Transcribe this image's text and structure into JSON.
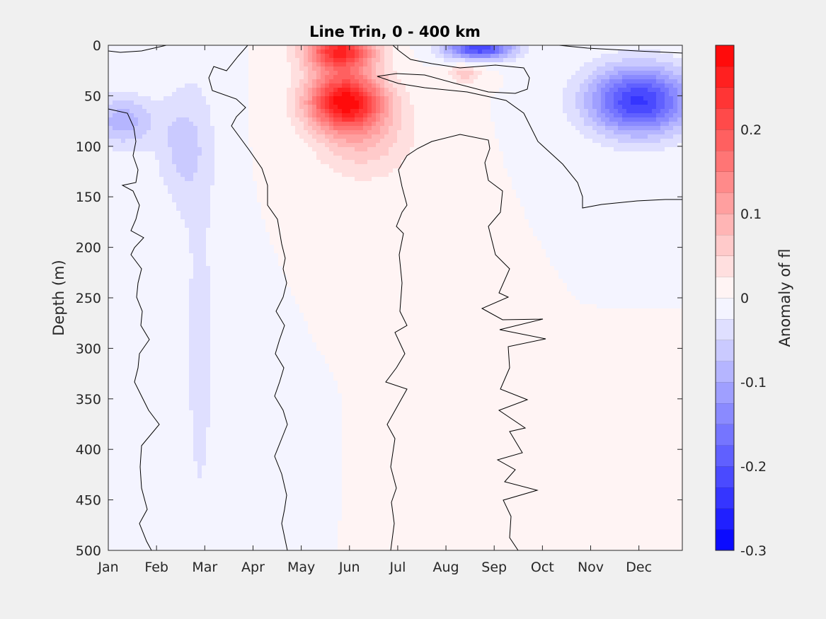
{
  "chart_data": {
    "type": "heatmap",
    "subtype": "filled-contour",
    "title": "Line Trin, 0 - 400 km",
    "xlabel": "",
    "ylabel": "Depth (m)",
    "x_tick_labels": [
      "Jan",
      "Feb",
      "Mar",
      "Apr",
      "May",
      "Jun",
      "Jul",
      "Aug",
      "Sep",
      "Oct",
      "Nov",
      "Dec"
    ],
    "x_tick_months": [
      1,
      2,
      3,
      4,
      5,
      6,
      7,
      8,
      9,
      10,
      11,
      12
    ],
    "xlim": [
      1,
      12.9
    ],
    "ylim": [
      0,
      500
    ],
    "y_reversed": true,
    "y_ticks": [
      0,
      50,
      100,
      150,
      200,
      250,
      300,
      350,
      400,
      450,
      500
    ],
    "grid": false,
    "colorbar": {
      "label": "Anomaly of fl",
      "limits": [
        -0.3,
        0.3
      ],
      "ticks": [
        -0.3,
        -0.2,
        -0.1,
        0,
        0.1,
        0.2
      ],
      "levels": 24,
      "colormap": "blue-white-red",
      "min_color": "#0000ff",
      "max_color": "#ff0000"
    },
    "anomaly_features": [
      {
        "sign": "positive",
        "month": 5.9,
        "depth": 55,
        "peak": 0.27
      },
      {
        "sign": "positive",
        "month": 5.8,
        "depth": 5,
        "peak": 0.25
      },
      {
        "sign": "positive",
        "month": 6.3,
        "depth": 90,
        "peak": 0.07
      },
      {
        "sign": "positive",
        "month": 8.4,
        "depth": 28,
        "peak": 0.06
      },
      {
        "sign": "negative",
        "month": 12.0,
        "depth": 55,
        "peak": -0.23
      },
      {
        "sign": "negative",
        "month": 8.7,
        "depth": 3,
        "peak": -0.22
      },
      {
        "sign": "negative",
        "month": 1.3,
        "depth": 75,
        "peak": -0.09
      },
      {
        "sign": "negative",
        "month": 2.5,
        "depth": 100,
        "peak": -0.05
      },
      {
        "sign": "negative",
        "month": 2.9,
        "depth": 300,
        "peak": -0.03
      }
    ]
  }
}
